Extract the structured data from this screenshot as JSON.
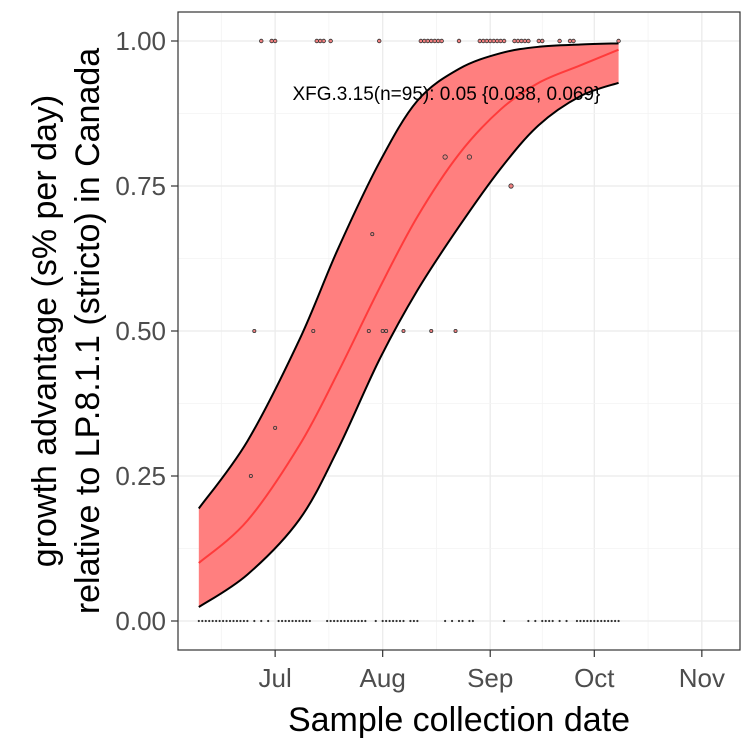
{
  "chart_data": {
    "type": "scatter",
    "title": "",
    "xlabel": "Sample collection date",
    "ylabel_lines": [
      "growth advantage (s% per day)",
      "relative to LP.8.1.1 (stricto) in Canada"
    ],
    "x_ticks": [
      {
        "label": "Jul",
        "date": "07-01"
      },
      {
        "label": "Aug",
        "date": "08-01"
      },
      {
        "label": "Sep",
        "date": "09-01"
      },
      {
        "label": "Oct",
        "date": "10-01"
      },
      {
        "label": "Nov",
        "date": "11-01"
      }
    ],
    "xlim": [
      "06-03",
      "11-12"
    ],
    "y_ticks": [
      "0.00",
      "0.25",
      "0.50",
      "0.75",
      "1.00"
    ],
    "ylim": [
      -0.05,
      1.05
    ],
    "grid": true,
    "annotation": {
      "text": "XFG.3.15(n=95): 0.05 {0.038, 0.069}",
      "date": "07-06",
      "y": 0.91
    },
    "colors": {
      "band": "#ff7f7f",
      "fit": "#ff3b3b",
      "band_edge": "#000000",
      "point_fill": "#f08080",
      "point_edge": "#333333"
    },
    "fit": {
      "dates": [
        "06-09",
        "06-23",
        "07-08",
        "07-19",
        "07-31",
        "08-11",
        "08-23",
        "09-04",
        "09-15",
        "09-27",
        "10-08"
      ],
      "estimate": [
        0.1,
        0.173,
        0.303,
        0.427,
        0.573,
        0.697,
        0.805,
        0.882,
        0.928,
        0.958,
        0.985
      ],
      "lower": [
        0.024,
        0.08,
        0.175,
        0.295,
        0.45,
        0.57,
        0.68,
        0.78,
        0.855,
        0.905,
        0.928
      ],
      "upper": [
        0.194,
        0.31,
        0.485,
        0.64,
        0.79,
        0.897,
        0.952,
        0.979,
        0.99,
        0.994,
        0.996
      ]
    },
    "points": {
      "y0": [
        "06-09",
        "06-10",
        "06-11",
        "06-12",
        "06-13",
        "06-14",
        "06-15",
        "06-16",
        "06-17",
        "06-18",
        "06-19",
        "06-20",
        "06-21",
        "06-22",
        "06-23",
        "06-25",
        "06-27",
        "06-29",
        "07-02",
        "07-03",
        "07-04",
        "07-05",
        "07-06",
        "07-07",
        "07-08",
        "07-09",
        "07-10",
        "07-11",
        "07-16",
        "07-17",
        "07-18",
        "07-19",
        "07-20",
        "07-21",
        "07-22",
        "07-23",
        "07-24",
        "07-25",
        "07-26",
        "07-27",
        "07-30",
        "08-01",
        "08-02",
        "08-03",
        "08-04",
        "08-05",
        "08-06",
        "08-07",
        "08-09",
        "08-10",
        "08-11",
        "08-19",
        "08-21",
        "08-23",
        "08-24",
        "08-26",
        "08-27",
        "09-05",
        "09-12",
        "09-14",
        "09-16",
        "09-17",
        "09-18",
        "09-19",
        "09-21",
        "09-23",
        "09-26",
        "09-27",
        "09-28",
        "09-29",
        "09-30",
        "10-01",
        "10-02",
        "10-03",
        "10-04",
        "10-05",
        "10-06",
        "10-07",
        "10-08"
      ],
      "y1": [
        "06-27",
        "06-30",
        "07-01",
        "07-13",
        "07-14",
        "07-15",
        "07-17",
        "07-31",
        "08-12",
        "08-13",
        "08-14",
        "08-15",
        "08-16",
        "08-17",
        "08-18",
        "08-23",
        "08-29",
        "08-30",
        "08-31",
        "09-01",
        "09-02",
        "09-03",
        "09-04",
        "09-05",
        "09-08",
        "09-09",
        "09-10",
        "09-11",
        "09-12",
        "09-15",
        "09-16",
        "09-21",
        "09-24",
        "09-25",
        "10-08"
      ],
      "mid": [
        {
          "date": "06-24",
          "y": 0.25
        },
        {
          "date": "07-01",
          "y": 0.333
        },
        {
          "date": "06-25",
          "y": 0.5
        },
        {
          "date": "07-12",
          "y": 0.5
        },
        {
          "date": "07-28",
          "y": 0.5
        },
        {
          "date": "08-01",
          "y": 0.5
        },
        {
          "date": "08-02",
          "y": 0.5
        },
        {
          "date": "08-07",
          "y": 0.5
        },
        {
          "date": "08-15",
          "y": 0.5
        },
        {
          "date": "08-22",
          "y": 0.5
        },
        {
          "date": "07-29",
          "y": 0.667
        },
        {
          "date": "08-19",
          "y": 0.8
        },
        {
          "date": "08-26",
          "y": 0.8
        },
        {
          "date": "09-07",
          "y": 0.75
        }
      ]
    }
  }
}
